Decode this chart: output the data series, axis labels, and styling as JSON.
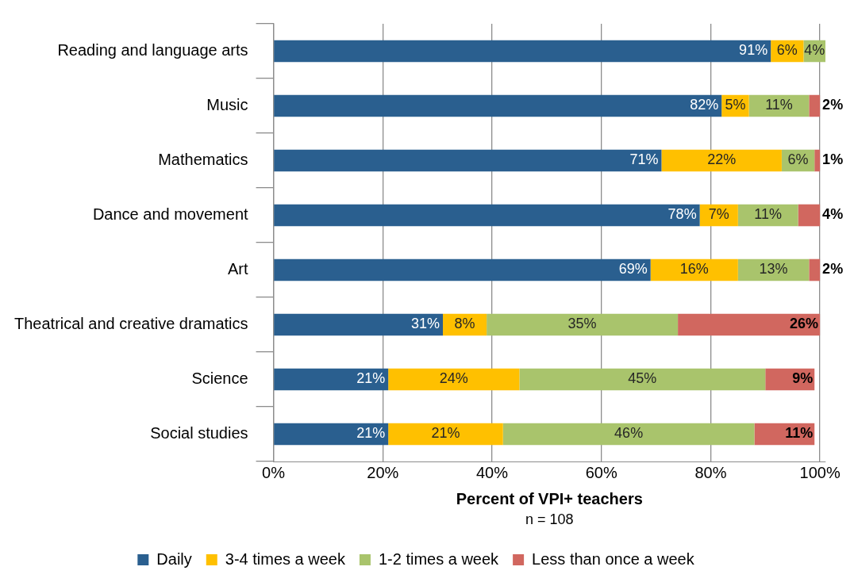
{
  "chart_data": {
    "type": "bar",
    "orientation": "horizontal",
    "stacked": true,
    "categories": [
      "Reading and language arts",
      "Music",
      "Mathematics",
      "Dance and movement",
      "Art",
      "Theatrical and creative dramatics",
      "Science",
      "Social studies"
    ],
    "series": [
      {
        "name": "Daily",
        "color": "#2a5f8f",
        "values": [
          91,
          82,
          71,
          78,
          69,
          31,
          21,
          21
        ],
        "value_labels": [
          "91%",
          "82%",
          "71%",
          "78%",
          "69%",
          "31%",
          "21%",
          "21%"
        ]
      },
      {
        "name": "3-4 times a week",
        "color": "#ffc000",
        "values": [
          6,
          5,
          22,
          7,
          16,
          8,
          24,
          21
        ],
        "value_labels": [
          "6%",
          "5%",
          "22%",
          "7%",
          "16%",
          "8%",
          "24%",
          "21%"
        ]
      },
      {
        "name": "1-2 times a week",
        "color": "#a9c46c",
        "values": [
          4,
          11,
          6,
          11,
          13,
          35,
          45,
          46
        ],
        "value_labels": [
          "4%",
          "11%",
          "6%",
          "11%",
          "13%",
          "35%",
          "45%",
          "46%"
        ]
      },
      {
        "name": "Less than once a week",
        "color": "#d1675f",
        "values": [
          null,
          2,
          1,
          4,
          2,
          26,
          9,
          11
        ],
        "value_labels": [
          null,
          "2%",
          "1%",
          "4%",
          "2%",
          "26%",
          "9%",
          "11%"
        ]
      }
    ],
    "xlim": [
      0,
      101
    ],
    "xticks": [
      {
        "value": 0,
        "label": "0%"
      },
      {
        "value": 20,
        "label": "20%"
      },
      {
        "value": 40,
        "label": "40%"
      },
      {
        "value": 60,
        "label": "60%"
      },
      {
        "value": 80,
        "label": "80%"
      },
      {
        "value": 100,
        "label": "100%"
      }
    ],
    "xlabel": "Percent of VPI+ teachers",
    "annotations": [
      "n = 108"
    ],
    "grid": "x",
    "legend": "bottom"
  }
}
